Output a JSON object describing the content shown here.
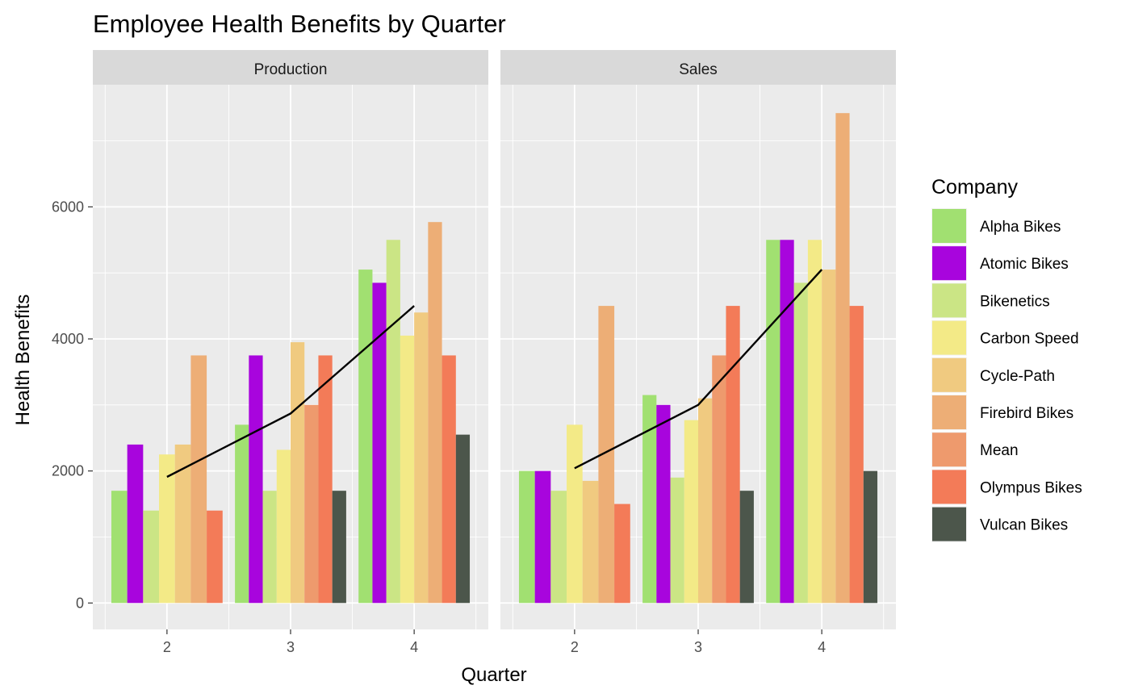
{
  "chart_data": {
    "type": "bar",
    "title": "Employee Health Benefits by Quarter",
    "xlabel": "Quarter",
    "ylabel": "Health Benefits",
    "categories": [
      "2",
      "3",
      "4"
    ],
    "ylim": [
      -400,
      7850
    ],
    "yticks": [
      0,
      2000,
      4000,
      6000
    ],
    "grid": true,
    "legend_position": "right",
    "legend_title": "Company",
    "companies": [
      {
        "name": "Alpha Bikes",
        "color": "#a1e071"
      },
      {
        "name": "Atomic Bikes",
        "color": "#a805dd"
      },
      {
        "name": "Bikenetics",
        "color": "#cbe585"
      },
      {
        "name": "Carbon Speed",
        "color": "#f3ea87"
      },
      {
        "name": "Cycle-Path",
        "color": "#f0ca80"
      },
      {
        "name": "Firebird Bikes",
        "color": "#edae76"
      },
      {
        "name": "Mean",
        "color": "#ee9a6d"
      },
      {
        "name": "Olympus Bikes",
        "color": "#f37b58"
      },
      {
        "name": "Vulcan Bikes",
        "color": "#4c564b"
      }
    ],
    "panels": [
      {
        "name": "Production",
        "bars": [
          [
            {
              "company": "Alpha Bikes",
              "value": 1700
            },
            {
              "company": "Atomic Bikes",
              "value": 2400
            },
            {
              "company": "Bikenetics",
              "value": 1400
            },
            {
              "company": "Carbon Speed",
              "value": 2250
            },
            {
              "company": "Cycle-Path",
              "value": 2400
            },
            {
              "company": "Firebird Bikes",
              "value": 3750
            },
            {
              "company": "Olympus Bikes",
              "value": 1400
            }
          ],
          [
            {
              "company": "Alpha Bikes",
              "value": 2700
            },
            {
              "company": "Atomic Bikes",
              "value": 3750
            },
            {
              "company": "Bikenetics",
              "value": 1700
            },
            {
              "company": "Carbon Speed",
              "value": 2320
            },
            {
              "company": "Cycle-Path",
              "value": 3950
            },
            {
              "company": "Mean",
              "value": 3000
            },
            {
              "company": "Olympus Bikes",
              "value": 3750
            },
            {
              "company": "Vulcan Bikes",
              "value": 1700
            }
          ],
          [
            {
              "company": "Alpha Bikes",
              "value": 5050
            },
            {
              "company": "Atomic Bikes",
              "value": 4850
            },
            {
              "company": "Bikenetics",
              "value": 5500
            },
            {
              "company": "Carbon Speed",
              "value": 4050
            },
            {
              "company": "Cycle-Path",
              "value": 4400
            },
            {
              "company": "Firebird Bikes",
              "value": 5770
            },
            {
              "company": "Olympus Bikes",
              "value": 3750
            },
            {
              "company": "Vulcan Bikes",
              "value": 2550
            }
          ]
        ],
        "mean_line": [
          1910,
          2870,
          4500
        ]
      },
      {
        "name": "Sales",
        "bars": [
          [
            {
              "company": "Alpha Bikes",
              "value": 2000
            },
            {
              "company": "Atomic Bikes",
              "value": 2000
            },
            {
              "company": "Bikenetics",
              "value": 1700
            },
            {
              "company": "Carbon Speed",
              "value": 2700
            },
            {
              "company": "Cycle-Path",
              "value": 1850
            },
            {
              "company": "Firebird Bikes",
              "value": 4500
            },
            {
              "company": "Olympus Bikes",
              "value": 1500
            }
          ],
          [
            {
              "company": "Alpha Bikes",
              "value": 3150
            },
            {
              "company": "Atomic Bikes",
              "value": 3000
            },
            {
              "company": "Bikenetics",
              "value": 1900
            },
            {
              "company": "Carbon Speed",
              "value": 2770
            },
            {
              "company": "Cycle-Path",
              "value": 3100
            },
            {
              "company": "Mean",
              "value": 3750
            },
            {
              "company": "Olympus Bikes",
              "value": 4500
            },
            {
              "company": "Vulcan Bikes",
              "value": 1700
            }
          ],
          [
            {
              "company": "Alpha Bikes",
              "value": 5500
            },
            {
              "company": "Atomic Bikes",
              "value": 5500
            },
            {
              "company": "Bikenetics",
              "value": 4850
            },
            {
              "company": "Carbon Speed",
              "value": 5500
            },
            {
              "company": "Cycle-Path",
              "value": 5050
            },
            {
              "company": "Firebird Bikes",
              "value": 7420
            },
            {
              "company": "Olympus Bikes",
              "value": 4500
            },
            {
              "company": "Vulcan Bikes",
              "value": 2000
            }
          ]
        ],
        "mean_line": [
          2040,
          3000,
          5050
        ]
      }
    ]
  }
}
